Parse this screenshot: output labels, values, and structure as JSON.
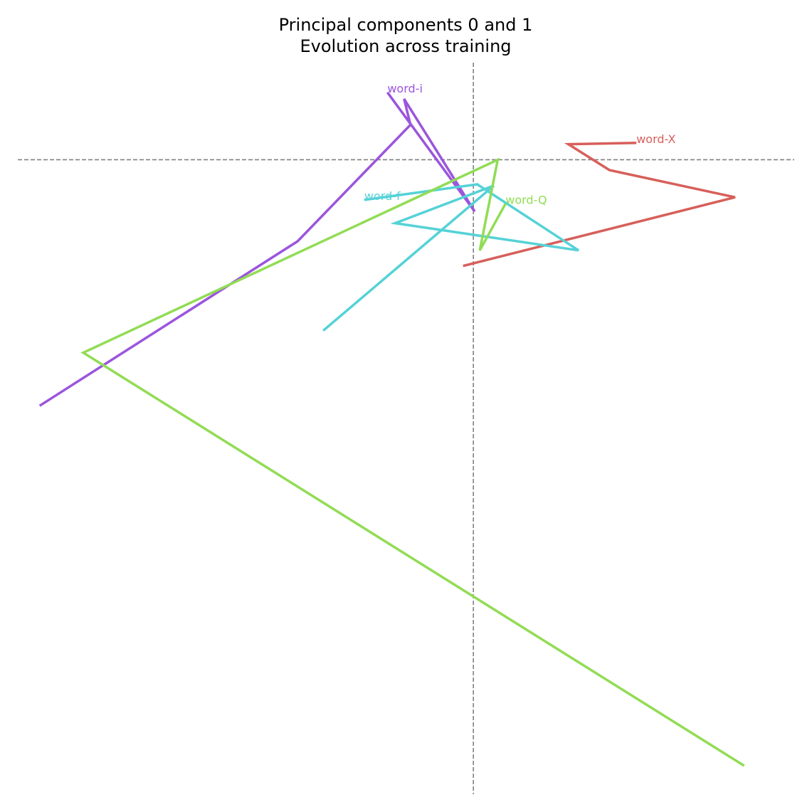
{
  "chart_data": {
    "type": "line",
    "title_line1": "Principal components 0 and 1",
    "title_line2": "Evolution across training",
    "xlabel": "",
    "ylabel": "",
    "xlim": [
      -3.55,
      2.5
    ],
    "ylim": [
      -4.9,
      0.75
    ],
    "grid": false,
    "axes_visible": false,
    "reference_lines": [
      {
        "orientation": "vertical",
        "value": 0,
        "style": "dashed",
        "color": "#808080"
      },
      {
        "orientation": "horizontal",
        "value": 0,
        "style": "dashed",
        "color": "#808080"
      }
    ],
    "series": [
      {
        "name": "word-X",
        "color": "#d75f5a",
        "x": [
          1.27,
          0.74,
          1.06,
          2.04,
          -0.08
        ],
        "y": [
          0.13,
          0.12,
          -0.08,
          -0.29,
          -0.82
        ]
      },
      {
        "name": "word-i",
        "color": "#9b55dc",
        "x": [
          -0.67,
          0.01,
          -0.54,
          -0.49,
          -1.37,
          -3.38
        ],
        "y": [
          0.52,
          -0.4,
          0.47,
          0.27,
          -0.63,
          -1.9
        ]
      },
      {
        "name": "word-f",
        "color": "#55d2d7",
        "x": [
          -0.85,
          0.03,
          0.82,
          -0.61,
          0.16,
          -1.17
        ],
        "y": [
          -0.31,
          -0.19,
          -0.7,
          -0.49,
          -0.2,
          -1.32
        ]
      },
      {
        "name": "word-Q",
        "color": "#91dc55",
        "x": [
          0.25,
          0.05,
          0.19,
          -3.04,
          2.11
        ],
        "y": [
          -0.34,
          -0.7,
          0.0,
          -1.49,
          -4.68
        ]
      }
    ]
  }
}
